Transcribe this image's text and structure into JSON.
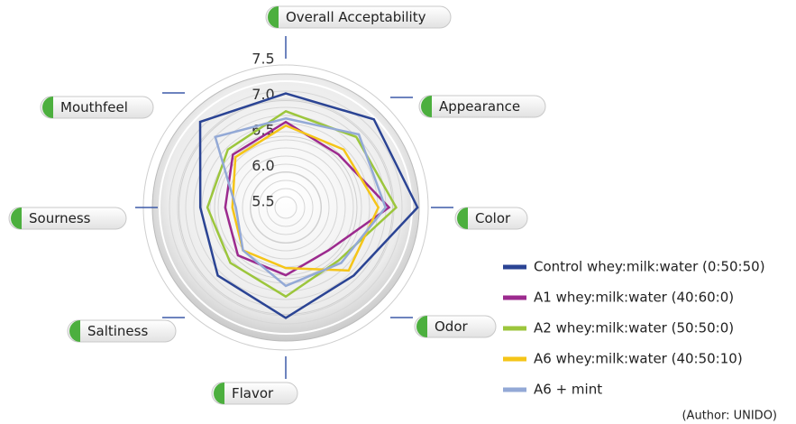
{
  "chart_data": {
    "type": "radar",
    "categories": [
      "Overall Acceptability",
      "Appearance",
      "Color",
      "Odor",
      "Flavor",
      "Saltiness",
      "Sourness",
      "Mouthfeel"
    ],
    "rlim": [
      5.5,
      7.5
    ],
    "rticks": [
      {
        "value": 5.5,
        "label": "5.5"
      },
      {
        "value": 6.0,
        "label": "6.0"
      },
      {
        "value": 6.5,
        "label": "6.5"
      },
      {
        "value": 7.0,
        "label": "7.0"
      },
      {
        "value": 7.5,
        "label": "7.5"
      }
    ],
    "series": [
      {
        "name": "Control whey:milk:water (0:50:50)",
        "color": "#2b4494",
        "values": [
          7.1,
          7.25,
          7.35,
          6.85,
          7.05,
          6.85,
          6.7,
          7.2
        ]
      },
      {
        "name": "A1 whey:milk:water (40:60:0)",
        "color": "#9c2a8e",
        "values": [
          6.7,
          6.55,
          6.95,
          6.35,
          6.45,
          6.45,
          6.35,
          6.55
        ]
      },
      {
        "name": "A2 whey:milk:water (50:50:0)",
        "color": "#9cc63c",
        "values": [
          6.85,
          6.9,
          7.05,
          6.55,
          6.75,
          6.6,
          6.6,
          6.65
        ]
      },
      {
        "name": "A6 whey:milk:water (40:50:10)",
        "color": "#f5c518",
        "values": [
          6.65,
          6.65,
          6.8,
          6.75,
          6.35,
          6.35,
          6.25,
          6.5
        ]
      },
      {
        "name": "A6 + mint",
        "color": "#93a9d6",
        "values": [
          6.75,
          6.95,
          6.9,
          6.6,
          6.6,
          6.35,
          6.2,
          6.9
        ]
      }
    ],
    "legend": "right",
    "annotation": "(Author: UNIDO)"
  }
}
